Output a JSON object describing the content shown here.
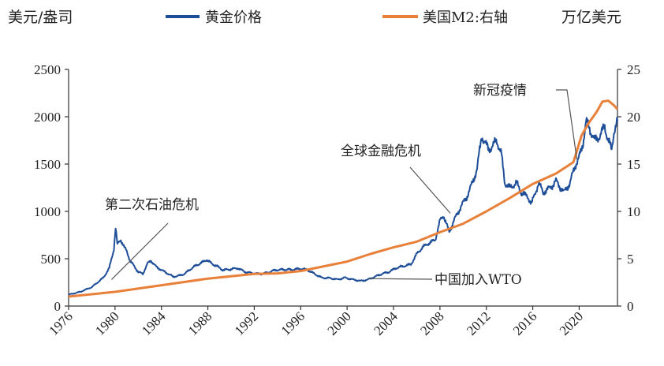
{
  "chart_data": {
    "type": "line",
    "left_axis_unit": "美元/盎司",
    "right_axis_unit": "万亿美元",
    "legend_position": "top",
    "x_ticks": [
      "1976",
      "1980",
      "1984",
      "1988",
      "1992",
      "1996",
      "2000",
      "2004",
      "2008",
      "2012",
      "2016",
      "2020"
    ],
    "x_range": [
      1976,
      2023.3
    ],
    "left_ylim": [
      0,
      2500
    ],
    "left_ticks": [
      "0",
      "500",
      "1000",
      "1500",
      "2000",
      "2500"
    ],
    "right_ylim": [
      0,
      25
    ],
    "right_ticks": [
      "0",
      "5",
      "10",
      "15",
      "20",
      "25"
    ],
    "grid": false,
    "series": [
      {
        "name": "黄金价格",
        "axis": "left",
        "color": "#1f4e99",
        "points": [
          [
            1976.0,
            120
          ],
          [
            1977.0,
            150
          ],
          [
            1978.0,
            200
          ],
          [
            1979.0,
            300
          ],
          [
            1979.5,
            400
          ],
          [
            1979.9,
            600
          ],
          [
            1980.05,
            830
          ],
          [
            1980.2,
            650
          ],
          [
            1980.5,
            700
          ],
          [
            1980.8,
            620
          ],
          [
            1981.0,
            580
          ],
          [
            1981.3,
            480
          ],
          [
            1981.6,
            430
          ],
          [
            1982.0,
            360
          ],
          [
            1982.4,
            340
          ],
          [
            1982.8,
            450
          ],
          [
            1983.1,
            480
          ],
          [
            1983.5,
            420
          ],
          [
            1984.0,
            380
          ],
          [
            1984.6,
            340
          ],
          [
            1985.0,
            310
          ],
          [
            1985.5,
            320
          ],
          [
            1986.0,
            340
          ],
          [
            1986.5,
            390
          ],
          [
            1987.0,
            430
          ],
          [
            1987.5,
            460
          ],
          [
            1987.9,
            490
          ],
          [
            1988.3,
            450
          ],
          [
            1988.8,
            420
          ],
          [
            1989.3,
            380
          ],
          [
            1990.0,
            390
          ],
          [
            1990.6,
            400
          ],
          [
            1991.2,
            360
          ],
          [
            1992.0,
            345
          ],
          [
            1992.6,
            340
          ],
          [
            1993.2,
            355
          ],
          [
            1993.8,
            380
          ],
          [
            1994.5,
            385
          ],
          [
            1995.3,
            385
          ],
          [
            1996.0,
            395
          ],
          [
            1996.6,
            380
          ],
          [
            1997.2,
            340
          ],
          [
            1997.8,
            300
          ],
          [
            1998.5,
            295
          ],
          [
            1999.2,
            280
          ],
          [
            1999.8,
            300
          ],
          [
            2000.5,
            280
          ],
          [
            2001.2,
            265
          ],
          [
            2001.8,
            280
          ],
          [
            2002.4,
            310
          ],
          [
            2003.0,
            340
          ],
          [
            2003.6,
            360
          ],
          [
            2004.2,
            400
          ],
          [
            2004.8,
            420
          ],
          [
            2005.5,
            440
          ],
          [
            2006.0,
            550
          ],
          [
            2006.5,
            620
          ],
          [
            2007.0,
            660
          ],
          [
            2007.6,
            700
          ],
          [
            2008.0,
            900
          ],
          [
            2008.3,
            960
          ],
          [
            2008.8,
            780
          ],
          [
            2009.2,
            900
          ],
          [
            2009.8,
            1050
          ],
          [
            2010.3,
            1150
          ],
          [
            2010.8,
            1300
          ],
          [
            2011.2,
            1450
          ],
          [
            2011.6,
            1800
          ],
          [
            2011.8,
            1750
          ],
          [
            2012.2,
            1650
          ],
          [
            2012.6,
            1700
          ],
          [
            2012.9,
            1750
          ],
          [
            2013.3,
            1600
          ],
          [
            2013.6,
            1300
          ],
          [
            2014.0,
            1250
          ],
          [
            2014.6,
            1300
          ],
          [
            2015.0,
            1200
          ],
          [
            2015.6,
            1150
          ],
          [
            2015.9,
            1080
          ],
          [
            2016.5,
            1300
          ],
          [
            2016.9,
            1200
          ],
          [
            2017.5,
            1250
          ],
          [
            2018.0,
            1320
          ],
          [
            2018.7,
            1200
          ],
          [
            2019.2,
            1300
          ],
          [
            2019.7,
            1500
          ],
          [
            2020.0,
            1570
          ],
          [
            2020.3,
            1700
          ],
          [
            2020.6,
            1950
          ],
          [
            2020.9,
            1880
          ],
          [
            2021.3,
            1750
          ],
          [
            2021.8,
            1800
          ],
          [
            2022.2,
            1900
          ],
          [
            2022.5,
            1750
          ],
          [
            2022.8,
            1650
          ],
          [
            2023.0,
            1850
          ],
          [
            2023.3,
            1950
          ]
        ]
      },
      {
        "name": "美国M2:右轴",
        "axis": "right",
        "color": "#e8803a",
        "points": [
          [
            1976.0,
            1.0
          ],
          [
            1980.0,
            1.5
          ],
          [
            1984.0,
            2.2
          ],
          [
            1988.0,
            2.9
          ],
          [
            1992.0,
            3.4
          ],
          [
            1994.0,
            3.45
          ],
          [
            1996.0,
            3.7
          ],
          [
            1998.0,
            4.2
          ],
          [
            2000.0,
            4.7
          ],
          [
            2002.0,
            5.5
          ],
          [
            2004.0,
            6.2
          ],
          [
            2006.0,
            6.8
          ],
          [
            2008.0,
            7.8
          ],
          [
            2010.0,
            8.7
          ],
          [
            2012.0,
            10.0
          ],
          [
            2014.0,
            11.4
          ],
          [
            2016.0,
            12.9
          ],
          [
            2018.0,
            14.0
          ],
          [
            2019.5,
            15.2
          ],
          [
            2020.2,
            18.0
          ],
          [
            2020.8,
            19.3
          ],
          [
            2021.5,
            20.5
          ],
          [
            2022.0,
            21.6
          ],
          [
            2022.5,
            21.7
          ],
          [
            2023.0,
            21.2
          ],
          [
            2023.3,
            20.8
          ]
        ]
      }
    ],
    "annotations": [
      {
        "text": "第二次石油危机",
        "x": 1979.7,
        "y": 280,
        "axis": "left"
      },
      {
        "text": "全球金融危机",
        "x": 2008.9,
        "y": 980,
        "axis": "left"
      },
      {
        "text": "中国加入WTO",
        "x": 2001.9,
        "y": 290,
        "axis": "left"
      },
      {
        "text": "新冠疫情",
        "x": 2019.8,
        "y": 1550,
        "axis": "left"
      }
    ]
  }
}
